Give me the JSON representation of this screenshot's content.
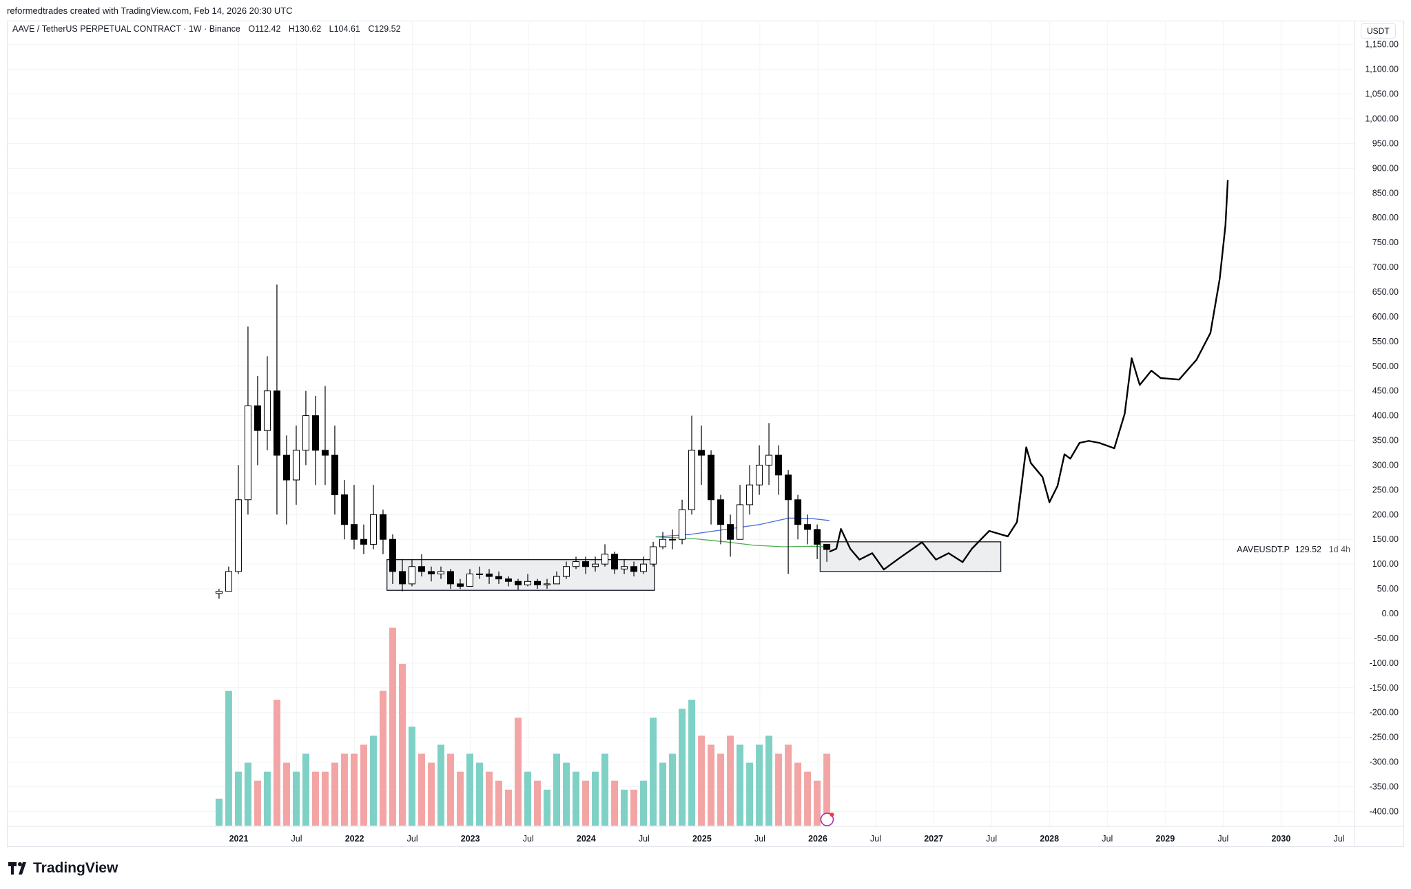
{
  "header": {
    "credit": "reformedtrades created with TradingView.com, Feb 14, 2026 20:30 UTC",
    "symbol": "AAVE / TetherUS PERPETUAL CONTRACT · 1W · Binance",
    "open": "O112.42",
    "high": "H130.62",
    "low": "L104.61",
    "close": "C129.52"
  },
  "axis": {
    "currency": "USDT"
  },
  "price_tag": {
    "symbol": "AAVEUSDT.P",
    "price": "129.52",
    "countdown": "1d 4h"
  },
  "logo": {
    "text": "TradingView"
  },
  "colors": {
    "up_volume": "#7fd1c6",
    "down_volume": "#f3a5a5",
    "ma_blue": "#4a6fe0",
    "ma_green": "#4caf50",
    "box_fill": "#e9eaec",
    "projection": "#000000"
  },
  "chart_data": {
    "type": "candlestick",
    "title": "AAVE / TetherUS PERPETUAL CONTRACT · 1W · Binance",
    "ylabel": "USDT",
    "ylim": [
      -420,
      1180
    ],
    "yticks": [
      1150,
      1100,
      1050,
      1000,
      950,
      900,
      850,
      800,
      750,
      700,
      650,
      600,
      550,
      500,
      450,
      400,
      350,
      300,
      250,
      200,
      150,
      100,
      50,
      0,
      -50,
      -100,
      -150,
      -200,
      -250,
      -300,
      -350,
      -400
    ],
    "xticks": [
      {
        "label": "2021",
        "t": 2021
      },
      {
        "label": "Jul",
        "t": 2021.5
      },
      {
        "label": "2022",
        "t": 2022
      },
      {
        "label": "Jul",
        "t": 2022.5
      },
      {
        "label": "2023",
        "t": 2023
      },
      {
        "label": "Jul",
        "t": 2023.5
      },
      {
        "label": "2024",
        "t": 2024
      },
      {
        "label": "Jul",
        "t": 2024.5
      },
      {
        "label": "2025",
        "t": 2025
      },
      {
        "label": "Jul",
        "t": 2025.5
      },
      {
        "label": "2026",
        "t": 2026
      },
      {
        "label": "Jul",
        "t": 2026.5
      },
      {
        "label": "2027",
        "t": 2027
      },
      {
        "label": "Jul",
        "t": 2027.5
      },
      {
        "label": "2028",
        "t": 2028
      },
      {
        "label": "Jul",
        "t": 2028.5
      },
      {
        "label": "2029",
        "t": 2029
      },
      {
        "label": "Jul",
        "t": 2029.5
      },
      {
        "label": "2030",
        "t": 2030
      },
      {
        "label": "Jul",
        "t": 2030.5
      }
    ],
    "candles_start": 2020.83,
    "candle_step": 0.0833,
    "close": [
      45,
      85,
      230,
      420,
      370,
      450,
      320,
      270,
      330,
      400,
      330,
      320,
      240,
      180,
      150,
      140,
      200,
      150,
      85,
      60,
      95,
      85,
      80,
      85,
      60,
      55,
      80,
      80,
      75,
      70,
      65,
      58,
      65,
      58,
      60,
      75,
      95,
      105,
      95,
      100,
      120,
      90,
      95,
      85,
      100,
      135,
      150,
      150,
      210,
      330,
      320,
      230,
      180,
      150,
      220,
      260,
      300,
      320,
      280,
      230,
      180,
      170,
      140,
      129.52
    ],
    "high": [
      50,
      95,
      300,
      580,
      480,
      520,
      665,
      360,
      380,
      450,
      440,
      460,
      380,
      270,
      260,
      180,
      260,
      210,
      160,
      110,
      110,
      120,
      95,
      95,
      90,
      70,
      90,
      95,
      90,
      85,
      75,
      70,
      80,
      70,
      70,
      85,
      105,
      115,
      115,
      115,
      140,
      125,
      110,
      105,
      115,
      145,
      165,
      170,
      230,
      400,
      380,
      330,
      240,
      200,
      260,
      300,
      340,
      385,
      340,
      290,
      240,
      200,
      180,
      130.62
    ],
    "low": [
      30,
      55,
      80,
      200,
      300,
      330,
      200,
      180,
      220,
      300,
      260,
      260,
      200,
      150,
      130,
      120,
      130,
      120,
      60,
      45,
      55,
      75,
      65,
      70,
      50,
      50,
      55,
      70,
      60,
      60,
      55,
      48,
      55,
      50,
      50,
      60,
      70,
      90,
      80,
      85,
      95,
      80,
      80,
      75,
      80,
      95,
      130,
      130,
      140,
      200,
      260,
      180,
      140,
      115,
      150,
      200,
      240,
      260,
      240,
      80,
      150,
      140,
      110,
      104.61
    ],
    "volume": [
      30,
      150,
      60,
      70,
      50,
      60,
      140,
      70,
      60,
      80,
      60,
      60,
      70,
      80,
      80,
      90,
      100,
      150,
      220,
      180,
      110,
      80,
      70,
      90,
      80,
      60,
      80,
      70,
      60,
      50,
      40,
      120,
      60,
      50,
      40,
      80,
      70,
      60,
      50,
      60,
      80,
      50,
      40,
      40,
      50,
      120,
      70,
      80,
      130,
      140,
      100,
      90,
      80,
      100,
      90,
      70,
      90,
      100,
      80,
      90,
      70,
      60,
      50,
      80
    ],
    "ma_blue": [
      [
        2024.6,
        155
      ],
      [
        2024.9,
        160
      ],
      [
        2025.2,
        170
      ],
      [
        2025.5,
        180
      ],
      [
        2025.75,
        193
      ],
      [
        2025.95,
        192
      ],
      [
        2026.1,
        188
      ]
    ],
    "ma_green": [
      [
        2024.6,
        155
      ],
      [
        2024.9,
        152
      ],
      [
        2025.2,
        145
      ],
      [
        2025.45,
        138
      ],
      [
        2025.7,
        135
      ],
      [
        2025.95,
        136
      ],
      [
        2026.1,
        135
      ]
    ],
    "boxes": [
      {
        "t0": 2022.28,
        "t1": 2024.59,
        "p0": 47,
        "p1": 109
      },
      {
        "t0": 2026.02,
        "t1": 2027.58,
        "p0": 85,
        "p1": 145
      }
    ],
    "projection": [
      [
        2026.1,
        125
      ],
      [
        2026.16,
        131
      ],
      [
        2026.2,
        171
      ],
      [
        2026.28,
        131
      ],
      [
        2026.36,
        109
      ],
      [
        2026.47,
        122
      ],
      [
        2026.57,
        89
      ],
      [
        2026.71,
        113
      ],
      [
        2026.9,
        144
      ],
      [
        2027.02,
        109
      ],
      [
        2027.13,
        122
      ],
      [
        2027.25,
        104
      ],
      [
        2027.33,
        131
      ],
      [
        2027.48,
        167
      ],
      [
        2027.64,
        156
      ],
      [
        2027.72,
        185
      ],
      [
        2027.8,
        336
      ],
      [
        2027.84,
        304
      ],
      [
        2027.94,
        276
      ],
      [
        2028.0,
        225
      ],
      [
        2028.07,
        258
      ],
      [
        2028.13,
        322
      ],
      [
        2028.18,
        313
      ],
      [
        2028.26,
        345
      ],
      [
        2028.34,
        349
      ],
      [
        2028.43,
        345
      ],
      [
        2028.56,
        334
      ],
      [
        2028.65,
        404
      ],
      [
        2028.71,
        516
      ],
      [
        2028.78,
        462
      ],
      [
        2028.88,
        491
      ],
      [
        2028.96,
        476
      ],
      [
        2029.12,
        473
      ],
      [
        2029.27,
        513
      ],
      [
        2029.39,
        567
      ],
      [
        2029.47,
        676
      ],
      [
        2029.52,
        785
      ],
      [
        2029.54,
        876
      ]
    ]
  }
}
